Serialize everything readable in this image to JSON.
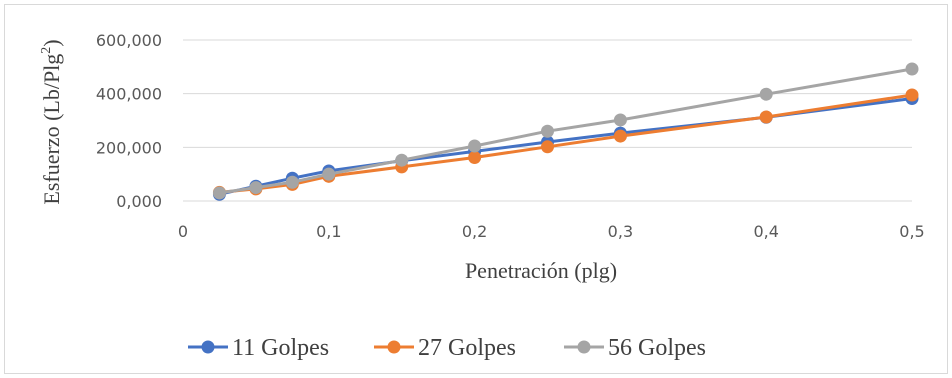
{
  "chart_data": {
    "type": "line",
    "x": [
      0.025,
      0.05,
      0.075,
      0.1,
      0.15,
      0.2,
      0.25,
      0.3,
      0.4,
      0.5
    ],
    "series": [
      {
        "name": "11 Golpes",
        "color": "#4472c4",
        "values": [
          25,
          55,
          85,
          112,
          150,
          185,
          220,
          253,
          312,
          382
        ]
      },
      {
        "name": "27 Golpes",
        "color": "#ed7d31",
        "values": [
          32,
          45,
          62,
          92,
          127,
          162,
          202,
          242,
          313,
          395
        ]
      },
      {
        "name": "56 Golpes",
        "color": "#a5a5a5",
        "values": [
          30,
          50,
          70,
          100,
          152,
          205,
          260,
          302,
          398,
          492
        ]
      }
    ],
    "xlabel": "Penetración (plg)",
    "ylabel_main": "Esfuerzo (Lb/Plg",
    "ylabel_sup": "2",
    "ylabel_tail": ")",
    "xlim": [
      0,
      0.5
    ],
    "ylim": [
      0,
      600
    ],
    "xticks": [
      0,
      0.1,
      0.2,
      0.3,
      0.4,
      0.5
    ],
    "xtick_labels": [
      "0",
      "0,1",
      "0,2",
      "0,3",
      "0,4",
      "0,5"
    ],
    "yticks": [
      0,
      200,
      400,
      600
    ],
    "ytick_labels": [
      "0,000",
      "200,000",
      "400,000",
      "600,000"
    ],
    "grid": "horizontal",
    "legend_position": "bottom"
  }
}
